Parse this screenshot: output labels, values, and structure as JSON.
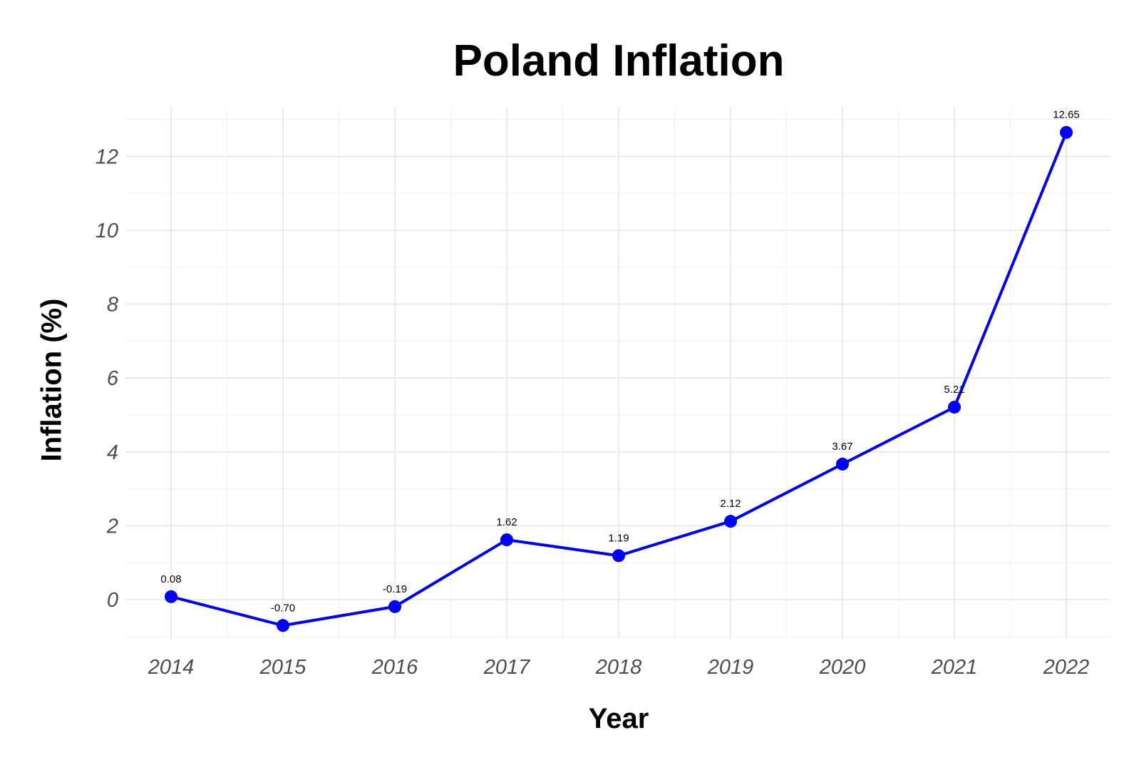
{
  "chart_data": {
    "type": "line",
    "title": "Poland Inflation",
    "xlabel": "Year",
    "ylabel": "Inflation (%)",
    "x": [
      "2014",
      "2015",
      "2016",
      "2017",
      "2018",
      "2019",
      "2020",
      "2021",
      "2022"
    ],
    "series": [
      {
        "values": [
          0.08,
          -0.7,
          -0.19,
          1.62,
          1.19,
          2.12,
          3.67,
          5.21,
          12.65
        ],
        "labels": [
          "0.08",
          "-0.70",
          "-0.19",
          "1.62",
          "1.19",
          "2.12",
          "3.67",
          "5.21",
          "12.65"
        ],
        "color": "#0000ff"
      }
    ],
    "ylim": [
      -2,
      13.4
    ],
    "yticks": [
      0,
      2,
      4,
      6,
      8,
      10,
      12
    ],
    "grid": true,
    "legend": "none"
  }
}
